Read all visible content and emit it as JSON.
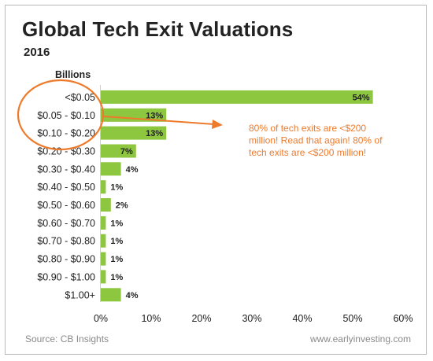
{
  "header": {
    "title": "Global Tech Exit Valuations",
    "subtitle": "2016"
  },
  "footer": {
    "source": "Source: CB Insights",
    "site": "www.earlyinvesting.com"
  },
  "colors": {
    "bar": "#8dc63f",
    "accent": "#ee7a2c"
  },
  "chart_data": {
    "type": "bar",
    "orientation": "horizontal",
    "ylabel": "Billions",
    "categories": [
      "<$0.05",
      "$0.05 - $0.10",
      "$0.10 - $0.20",
      "$0.20 - $0.30",
      "$0.30 - $0.40",
      "$0.40 - $0.50",
      "$0.50 - $0.60",
      "$0.60 - $0.70",
      "$0.70 - $0.80",
      "$0.80 - $0.90",
      "$0.90 - $1.00",
      "$1.00+"
    ],
    "values": [
      54,
      13,
      13,
      7,
      4,
      1,
      2,
      1,
      1,
      1,
      1,
      4
    ],
    "value_labels": [
      "54%",
      "13%",
      "13%",
      "7%",
      "4%",
      "1%",
      "2%",
      "1%",
      "1%",
      "1%",
      "1%",
      "4%"
    ],
    "x_ticks": [
      0,
      10,
      20,
      30,
      40,
      50,
      60
    ],
    "x_tick_labels": [
      "0%",
      "10%",
      "20%",
      "30%",
      "40%",
      "50%",
      "60%"
    ],
    "xlim": [
      0,
      60
    ],
    "grid": false,
    "annotation": {
      "lines": [
        "80% of tech exits are <$200",
        "million! Read that again! 80% of",
        "tech exits are <$200 million!"
      ]
    }
  }
}
